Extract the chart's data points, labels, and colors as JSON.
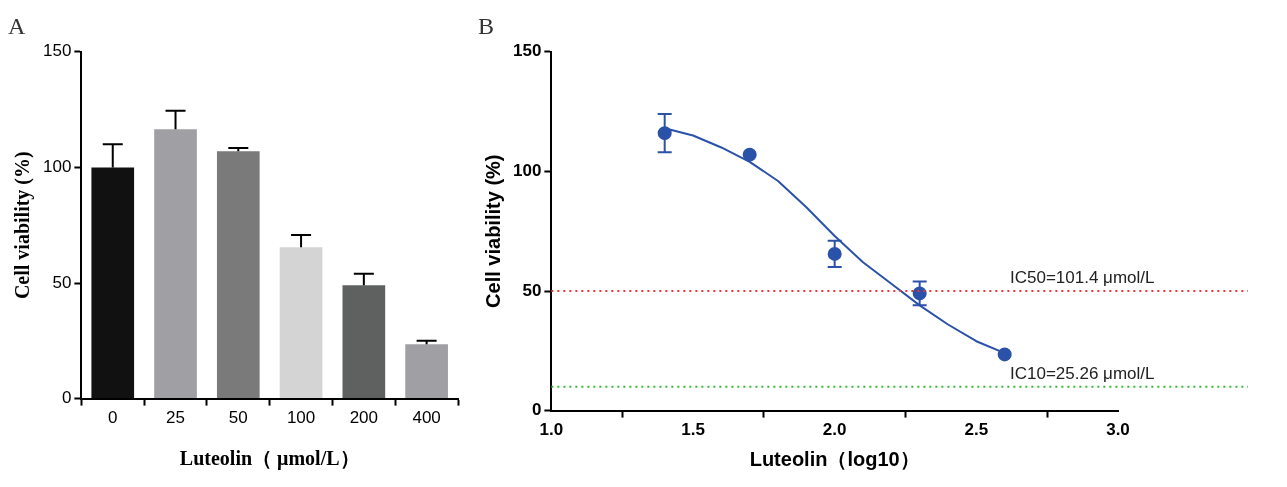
{
  "chart_data": [
    {
      "type": "bar",
      "title": "A",
      "xlabel": "Luteolin（ μmol/L）",
      "ylabel": "Cell viability (%)",
      "categories": [
        "0",
        "25",
        "50",
        "100",
        "200",
        "400"
      ],
      "values": [
        100,
        116.5,
        107,
        65.5,
        49,
        23.5
      ],
      "colors": [
        "#111111",
        "#a0a0a4",
        "#7a7a7a",
        "#d4d4d4",
        "#5f6060",
        "#a0a0a4"
      ],
      "errors": [
        [
          100,
          110
        ],
        [
          116.5,
          124.5
        ],
        [
          107,
          108.4
        ],
        [
          65.5,
          70.8
        ],
        [
          49,
          54
        ],
        [
          23.5,
          25
        ]
      ],
      "ylim": [
        0,
        150
      ],
      "yticks": [
        0,
        50,
        100,
        150
      ],
      "grid": false
    },
    {
      "type": "scatter",
      "title": "B",
      "xlabel": "Luteolin（log10）",
      "ylabel": "Cell viability (%)",
      "series": [
        {
          "color": "#2a52a8",
          "x": [
            1.4,
            1.7,
            2.0,
            2.3,
            2.6
          ],
          "values": [
            116,
            107,
            65.5,
            49,
            23.5
          ],
          "errors": [
            [
              108,
              124
            ],
            null,
            [
              60,
              71
            ],
            [
              44,
              54
            ],
            null
          ],
          "marker": "circle"
        },
        {
          "type": "line",
          "color": "#2a52a8",
          "x": [
            1.4,
            1.5,
            1.6,
            1.7,
            1.8,
            1.9,
            2.0,
            2.1,
            2.2,
            2.3,
            2.4,
            2.5,
            2.6
          ],
          "values": [
            118,
            115,
            110,
            104,
            96,
            85,
            73,
            62,
            53,
            44,
            36,
            29,
            24
          ],
          "marker": "none"
        }
      ],
      "xlim": [
        1.0,
        3.0
      ],
      "xticks": [
        {
          "value": 1,
          "label": "1.0"
        },
        {
          "value": 1.5,
          "label": "1.5"
        },
        {
          "value": 2,
          "label": "2.0"
        },
        {
          "value": 2.5,
          "label": "2.5"
        },
        {
          "value": 3,
          "label": "3.0"
        }
      ],
      "ylim": [
        0,
        150
      ],
      "yticks": [
        0,
        50,
        100,
        150
      ],
      "grid": false,
      "ref_lines": [
        {
          "axis": "y",
          "value": 50,
          "label": "IC50=101.4 μmol/L",
          "color": "#ee3333",
          "line_style": "dotted"
        },
        {
          "axis": "y",
          "value": 10,
          "label": "IC10=25.26 μmol/L",
          "color": "#33bb33",
          "line_style": "dotted"
        }
      ]
    }
  ]
}
